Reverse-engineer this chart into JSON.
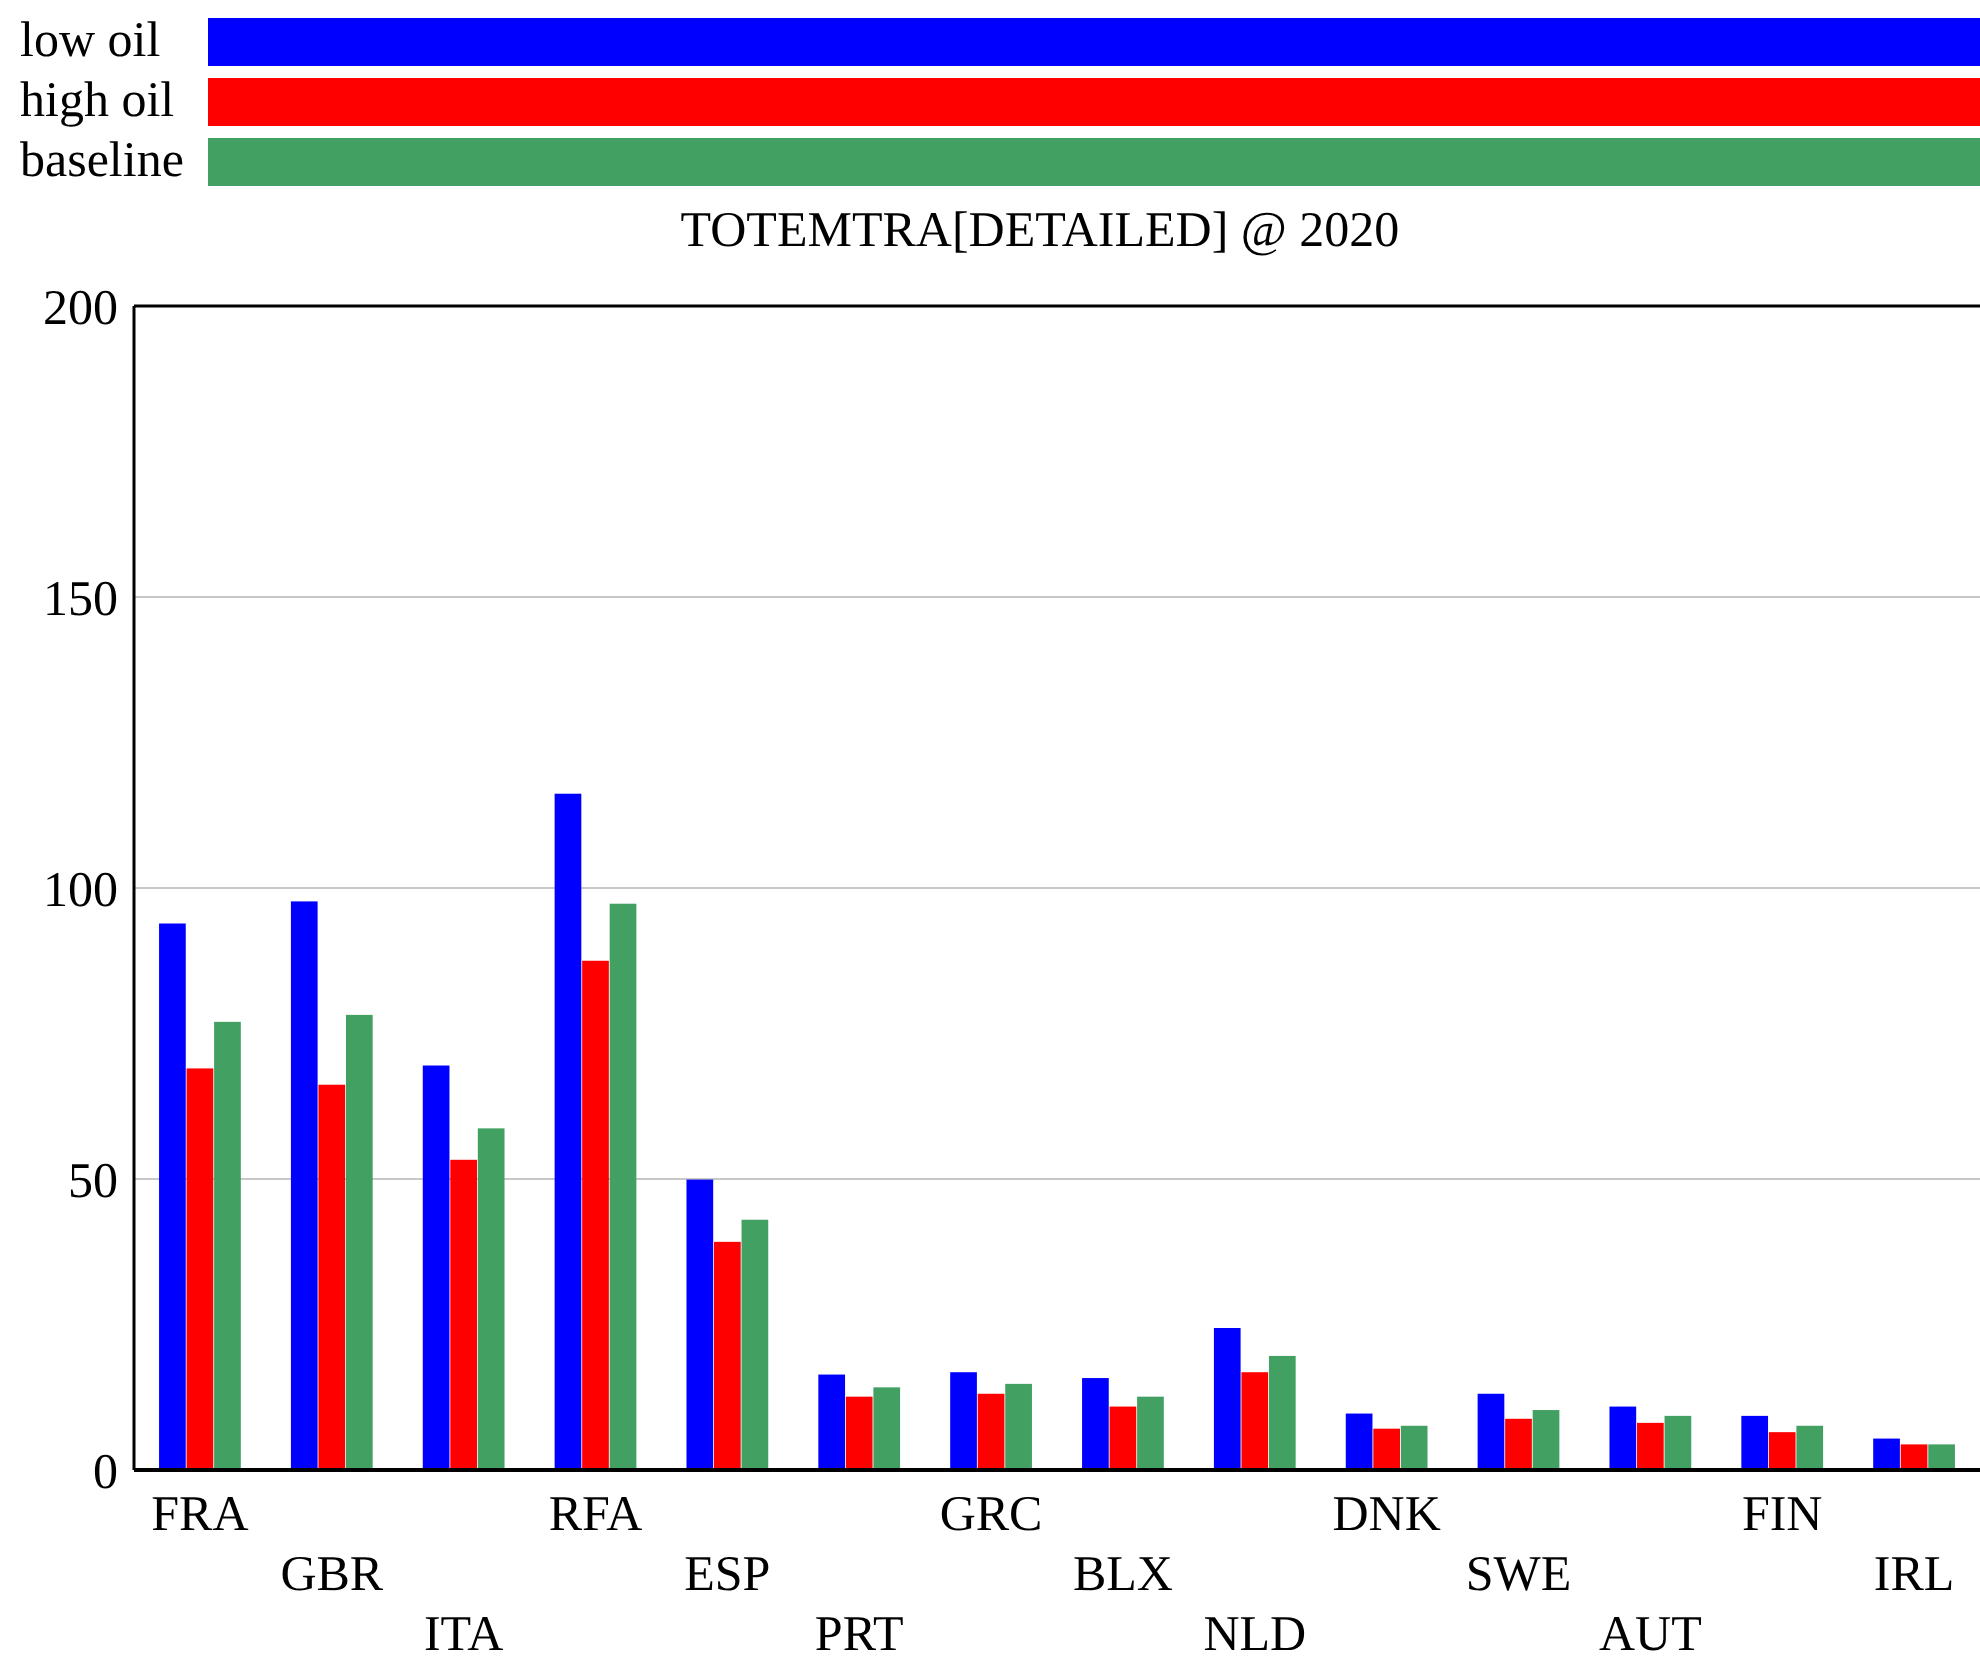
{
  "chart_data": {
    "type": "bar",
    "title": "TOTEMTRA[DETAILED] @ 2020",
    "categories": [
      "FRA",
      "GBR",
      "ITA",
      "RFA",
      "ESP",
      "PRT",
      "GRC",
      "BLX",
      "NLD",
      "DNK",
      "SWE",
      "AUT",
      "FIN",
      "IRL"
    ],
    "series": [
      {
        "name": "low oil",
        "color": "#0000ff",
        "values": [
          93.9,
          97.7,
          69.5,
          116.2,
          49.9,
          16.4,
          16.8,
          15.8,
          24.4,
          9.7,
          13.1,
          10.9,
          9.3,
          5.4
        ]
      },
      {
        "name": "high oil",
        "color": "#ff0000",
        "values": [
          69.0,
          66.2,
          53.3,
          87.5,
          39.2,
          12.6,
          13.1,
          10.9,
          16.8,
          7.1,
          8.8,
          8.1,
          6.5,
          4.4
        ]
      },
      {
        "name": "baseline",
        "color": "#41a062",
        "values": [
          77.0,
          78.2,
          58.7,
          97.3,
          43.0,
          14.2,
          14.8,
          12.6,
          19.6,
          7.6,
          10.3,
          9.3,
          7.6,
          4.4
        ]
      }
    ],
    "ylim": [
      0,
      200
    ],
    "yticks": [
      0,
      50,
      100,
      150,
      200
    ],
    "grid": "y",
    "legend": "top"
  }
}
